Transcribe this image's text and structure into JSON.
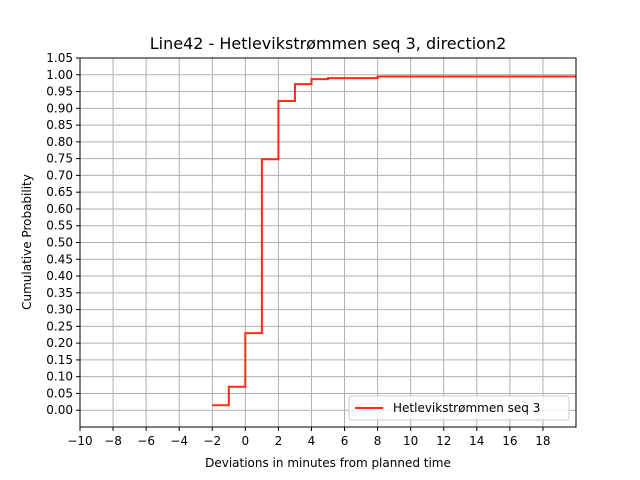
{
  "chart_data": {
    "type": "line",
    "title": "Line42 - Hetlevikstrømmen seq 3, direction2",
    "xlabel": "Deviations in minutes from planned time",
    "ylabel": "Cumulative Probability",
    "xlim": [
      -10,
      20
    ],
    "ylim": [
      -0.05,
      1.05
    ],
    "x_ticks": [
      -10,
      -8,
      -6,
      -4,
      -2,
      0,
      2,
      4,
      6,
      8,
      10,
      12,
      14,
      16,
      18
    ],
    "x_tick_labels": [
      "−10",
      "−8",
      "−6",
      "−4",
      "−2",
      "0",
      "2",
      "4",
      "6",
      "8",
      "10",
      "12",
      "14",
      "16",
      "18"
    ],
    "y_ticks": [
      0.0,
      0.05,
      0.1,
      0.15,
      0.2,
      0.25,
      0.3,
      0.35,
      0.4,
      0.45,
      0.5,
      0.55,
      0.6,
      0.65,
      0.7,
      0.75,
      0.8,
      0.85,
      0.9,
      0.95,
      1.0,
      1.05
    ],
    "y_tick_labels": [
      "0.00",
      "0.05",
      "0.10",
      "0.15",
      "0.20",
      "0.25",
      "0.30",
      "0.35",
      "0.40",
      "0.45",
      "0.50",
      "0.55",
      "0.60",
      "0.65",
      "0.70",
      "0.75",
      "0.80",
      "0.85",
      "0.90",
      "0.95",
      "1.00",
      "1.05"
    ],
    "grid": true,
    "legend_position": "lower-right",
    "series": [
      {
        "name": "Hetlevikstrømmen seq 3",
        "color": "#ff2a1a",
        "step": "post",
        "points": [
          {
            "x": -2,
            "y": 0.015
          },
          {
            "x": -1,
            "y": 0.07
          },
          {
            "x": 0,
            "y": 0.23
          },
          {
            "x": 1,
            "y": 0.748
          },
          {
            "x": 2,
            "y": 0.922
          },
          {
            "x": 3,
            "y": 0.972
          },
          {
            "x": 4,
            "y": 0.987
          },
          {
            "x": 5,
            "y": 0.99
          },
          {
            "x": 8,
            "y": 0.995
          },
          {
            "x": 20,
            "y": 0.995
          }
        ]
      }
    ]
  }
}
